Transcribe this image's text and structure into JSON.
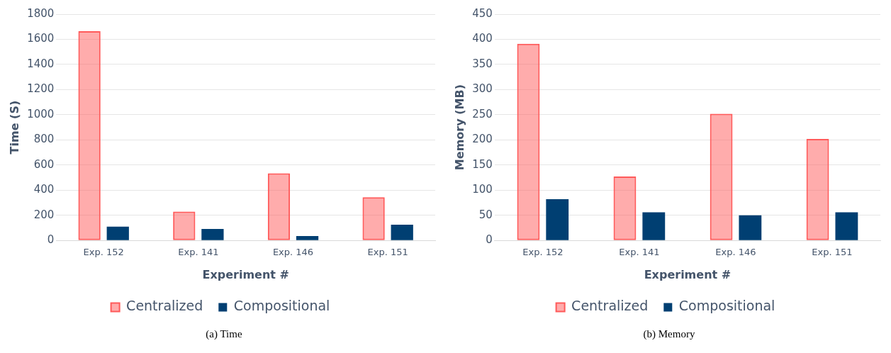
{
  "chart_data": [
    {
      "type": "bar",
      "xlabel": "Experiment #",
      "ylabel": "Time (S)",
      "categories": [
        "Exp. 152",
        "Exp. 141",
        "Exp. 146",
        "Exp. 151"
      ],
      "series": [
        {
          "name": "Centralized",
          "color": "#ff5a5a",
          "values": [
            1665,
            230,
            534,
            344
          ]
        },
        {
          "name": "Compositional",
          "color": "#003f72",
          "values": [
            109,
            92,
            35,
            125
          ]
        }
      ],
      "ylim": [
        0,
        1800
      ],
      "yticks": [
        0,
        200,
        400,
        600,
        800,
        1000,
        1200,
        1400,
        1600,
        1800
      ],
      "grid": "y",
      "legend": "bottom",
      "annotations": [
        "(a) Time"
      ]
    },
    {
      "type": "bar",
      "xlabel": "Experiment #",
      "ylabel": "Memory (MB)",
      "categories": [
        "Exp. 152",
        "Exp. 141",
        "Exp. 146",
        "Exp. 151"
      ],
      "series": [
        {
          "name": "Centralized",
          "color": "#ff5a5a",
          "values": [
            391,
            127,
            252,
            202
          ]
        },
        {
          "name": "Compositional",
          "color": "#003f72",
          "values": [
            82,
            56,
            50,
            56
          ]
        }
      ],
      "ylim": [
        0,
        450
      ],
      "yticks": [
        0,
        50,
        100,
        150,
        200,
        250,
        300,
        350,
        400,
        450
      ],
      "grid": "y",
      "legend": "bottom",
      "annotations": [
        "(b) Memory"
      ]
    }
  ]
}
